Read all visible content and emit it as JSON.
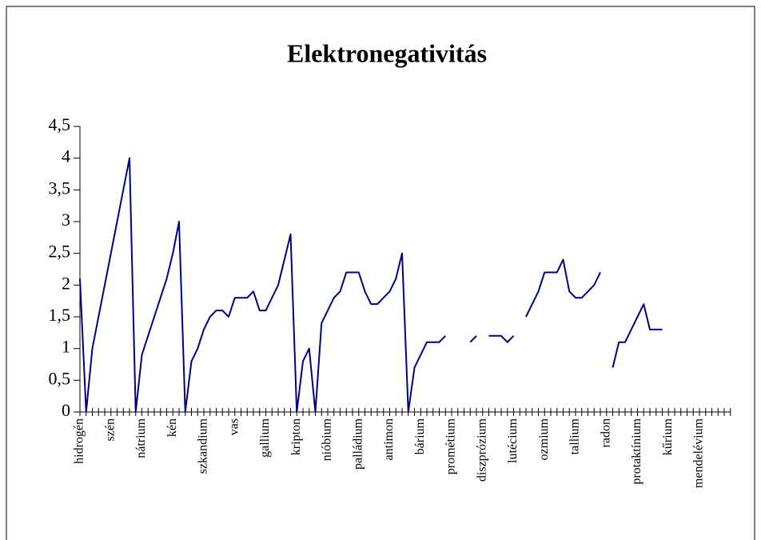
{
  "chart_data": {
    "type": "line",
    "title": "Elektronegativitás",
    "categories": [
      "hidrogén",
      null,
      null,
      null,
      null,
      "szén",
      null,
      null,
      null,
      null,
      "nátrium",
      null,
      null,
      null,
      null,
      "kén",
      null,
      null,
      null,
      null,
      "szkandium",
      null,
      null,
      null,
      null,
      "vas",
      null,
      null,
      null,
      null,
      "gallium",
      null,
      null,
      null,
      null,
      "kripton",
      null,
      null,
      null,
      null,
      "nióbium",
      null,
      null,
      null,
      null,
      "palládium",
      null,
      null,
      null,
      null,
      "antimon",
      null,
      null,
      null,
      null,
      "bárium",
      null,
      null,
      null,
      null,
      "prométium",
      null,
      null,
      null,
      null,
      "diszprózium",
      null,
      null,
      null,
      null,
      "lutécium",
      null,
      null,
      null,
      null,
      "ozmium",
      null,
      null,
      null,
      null,
      "tallium",
      null,
      null,
      null,
      null,
      "radon",
      null,
      null,
      null,
      null,
      "protaktínium",
      null,
      null,
      null,
      null,
      "kűrium",
      null,
      null,
      null,
      null,
      "mendelévium",
      null,
      null,
      null,
      null,
      null
    ],
    "series": [
      {
        "color": "#000080",
        "values": [
          2.1,
          0,
          1.0,
          1.5,
          2.0,
          2.5,
          3.0,
          3.5,
          4.0,
          0,
          0.9,
          1.2,
          1.5,
          1.8,
          2.1,
          2.5,
          3.0,
          0,
          0.8,
          1.0,
          1.3,
          1.5,
          1.6,
          1.6,
          1.5,
          1.8,
          1.8,
          1.8,
          1.9,
          1.6,
          1.6,
          1.8,
          2.0,
          2.4,
          2.8,
          0,
          0.8,
          1.0,
          0,
          1.4,
          1.6,
          1.8,
          1.9,
          2.2,
          2.2,
          2.2,
          1.9,
          1.7,
          1.7,
          1.8,
          1.9,
          2.1,
          2.5,
          0,
          0.7,
          0.9,
          1.1,
          1.1,
          1.1,
          1.2,
          null,
          null,
          null,
          1.1,
          1.2,
          null,
          1.2,
          1.2,
          1.2,
          1.1,
          1.2,
          null,
          1.5,
          1.7,
          1.9,
          2.2,
          2.2,
          2.2,
          2.4,
          1.9,
          1.8,
          1.8,
          1.9,
          2.0,
          2.2,
          null,
          0.7,
          1.1,
          1.1,
          1.3,
          1.5,
          1.7,
          1.3,
          1.3,
          1.3,
          null,
          null,
          null,
          null,
          null,
          null,
          null,
          null,
          null,
          null,
          null
        ]
      }
    ],
    "ylim": [
      0,
      4.5
    ],
    "yticks": [
      0,
      {
        "value": 0.5,
        "label": "0,5"
      },
      1,
      {
        "value": 1.5,
        "label": "1,5"
      },
      2,
      {
        "value": 2.5,
        "label": "2,5"
      },
      3,
      {
        "value": 3.5,
        "label": "3,5"
      },
      4,
      {
        "value": 4.5,
        "label": "4,5"
      }
    ]
  }
}
